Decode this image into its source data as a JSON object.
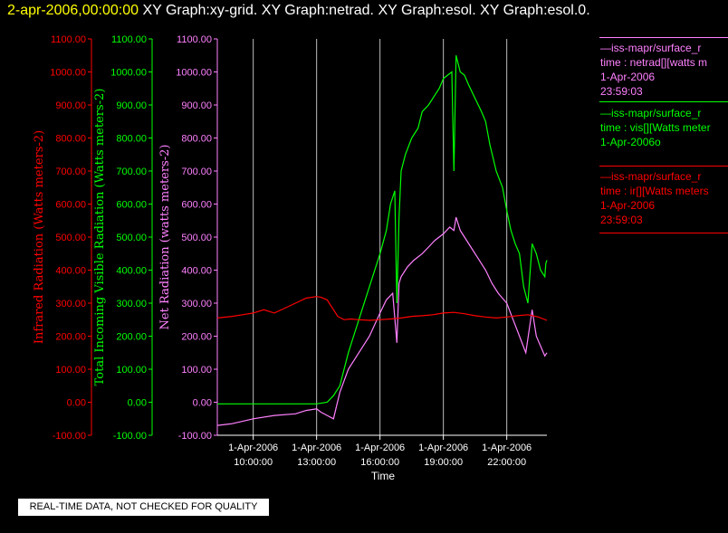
{
  "header": {
    "date_label": "2-apr-2006,00:00:00",
    "graphs_label": "XY Graph:xy-grid.  XY Graph:netrad.  XY Graph:esol.  XY Graph:esol.0."
  },
  "legend": [
    {
      "line1": "—iss-mapr/surface_r",
      "line2": "time : netrad[][watts m",
      "line3": "1-Apr-2006",
      "line4": "23:59:03",
      "color": "#ff80ff"
    },
    {
      "line1": "—iss-mapr/surface_r",
      "line2": "time : vis[][Watts meter",
      "line3": "1-Apr-2006o",
      "line4": "",
      "color": "#00ff00"
    },
    {
      "line1": "—iss-mapr/surface_r",
      "line2": "time : ir[][Watts meters",
      "line3": "1-Apr-2006",
      "line4": "23:59:03",
      "color": "#ff0000"
    }
  ],
  "footer": {
    "note": "REAL-TIME DATA, NOT CHECKED FOR QUALITY"
  },
  "chart_data": {
    "type": "line",
    "xlabel": "Time",
    "x_ticks": [
      {
        "date": "1-Apr-2006",
        "time": "10:00:00",
        "hour": 10
      },
      {
        "date": "1-Apr-2006",
        "time": "13:00:00",
        "hour": 13
      },
      {
        "date": "1-Apr-2006",
        "time": "16:00:00",
        "hour": 16
      },
      {
        "date": "1-Apr-2006",
        "time": "19:00:00",
        "hour": 19
      },
      {
        "date": "1-Apr-2006",
        "time": "22:00:00",
        "hour": 22
      }
    ],
    "x_range_hours": [
      8.3,
      23.9
    ],
    "grid": "vertical",
    "axes": [
      {
        "id": "ir",
        "label": "Infrared Radiation (Watts meters-2)",
        "color": "#ff0000",
        "ticks": [
          "1100.00",
          "1000.00",
          "900.00",
          "800.00",
          "700.00",
          "600.00",
          "500.00",
          "400.00",
          "300.00",
          "200.00",
          "100.00",
          "0.00",
          "-100.00"
        ],
        "ylim": [
          -100,
          1100
        ]
      },
      {
        "id": "vis",
        "label": "Total Incoming Visible Radiation (Watts meters-2)",
        "color": "#00ff00",
        "ticks": [
          "1100.00",
          "1000.00",
          "900.00",
          "800.00",
          "700.00",
          "600.00",
          "500.00",
          "400.00",
          "300.00",
          "200.00",
          "100.00",
          "0.00",
          "-100.00"
        ],
        "ylim": [
          -100,
          1100
        ]
      },
      {
        "id": "net",
        "label": "Net Radiation (watts meters-2)",
        "color": "#ff80ff",
        "ticks": [
          "1100.00",
          "1000.00",
          "900.00",
          "800.00",
          "700.00",
          "600.00",
          "500.00",
          "400.00",
          "300.00",
          "200.00",
          "100.00",
          "0.00",
          "-100.00"
        ],
        "ylim": [
          -100,
          1100
        ]
      }
    ],
    "series": [
      {
        "id": "vis",
        "color": "#00ff00",
        "x": [
          8.3,
          9,
          10,
          11,
          12,
          13,
          13.5,
          13.8,
          14.1,
          14.5,
          15,
          15.5,
          16,
          16.3,
          16.5,
          16.7,
          16.8,
          16.9,
          17,
          17.2,
          17.5,
          17.8,
          18,
          18.3,
          18.6,
          18.8,
          19,
          19.2,
          19.4,
          19.5,
          19.6,
          19.8,
          20,
          20.2,
          20.5,
          20.8,
          21,
          21.2,
          21.5,
          21.8,
          22,
          22.2,
          22.4,
          22.6,
          22.8,
          23,
          23.2,
          23.4,
          23.6,
          23.8,
          23.85,
          23.9
        ],
        "y": [
          -5,
          -5,
          -5,
          -5,
          -5,
          -5,
          0,
          20,
          50,
          150,
          250,
          350,
          450,
          520,
          600,
          640,
          300,
          560,
          700,
          750,
          800,
          830,
          880,
          900,
          930,
          950,
          980,
          990,
          1000,
          700,
          1050,
          1000,
          990,
          960,
          920,
          880,
          850,
          780,
          700,
          650,
          580,
          520,
          480,
          450,
          350,
          300,
          480,
          450,
          400,
          380,
          420,
          430
        ]
      },
      {
        "id": "net",
        "color": "#ff80ff",
        "x": [
          8.3,
          9,
          10,
          11,
          12,
          12.5,
          13,
          13.2,
          13.5,
          13.8,
          14.1,
          14.5,
          15,
          15.5,
          16,
          16.3,
          16.6,
          16.8,
          16.9,
          17,
          17.3,
          17.6,
          18,
          18.3,
          18.6,
          19,
          19.3,
          19.5,
          19.6,
          19.8,
          20,
          20.3,
          20.6,
          21,
          21.3,
          21.6,
          22,
          22.3,
          22.6,
          22.9,
          23.2,
          23.4,
          23.6,
          23.8,
          23.9
        ],
        "y": [
          -70,
          -65,
          -50,
          -40,
          -35,
          -25,
          -20,
          -30,
          -40,
          -50,
          30,
          100,
          150,
          200,
          270,
          310,
          330,
          180,
          360,
          380,
          410,
          430,
          450,
          470,
          490,
          510,
          530,
          520,
          560,
          520,
          500,
          470,
          440,
          400,
          360,
          330,
          300,
          250,
          200,
          150,
          280,
          200,
          170,
          140,
          150
        ]
      },
      {
        "id": "ir",
        "color": "#ff0000",
        "x": [
          8.3,
          9,
          9.5,
          10,
          10.5,
          11,
          11.5,
          12,
          12.5,
          13,
          13.2,
          13.5,
          13.8,
          14,
          14.3,
          14.6,
          15,
          15.5,
          16,
          16.5,
          17,
          17.5,
          18,
          18.5,
          19,
          19.5,
          20,
          20.5,
          21,
          21.5,
          22,
          22.5,
          23,
          23.5,
          23.9
        ],
        "y": [
          255,
          260,
          265,
          270,
          280,
          270,
          285,
          300,
          315,
          320,
          318,
          310,
          280,
          260,
          250,
          252,
          250,
          248,
          250,
          252,
          255,
          260,
          262,
          265,
          270,
          272,
          268,
          262,
          258,
          255,
          258,
          262,
          265,
          258,
          248
        ]
      }
    ]
  }
}
